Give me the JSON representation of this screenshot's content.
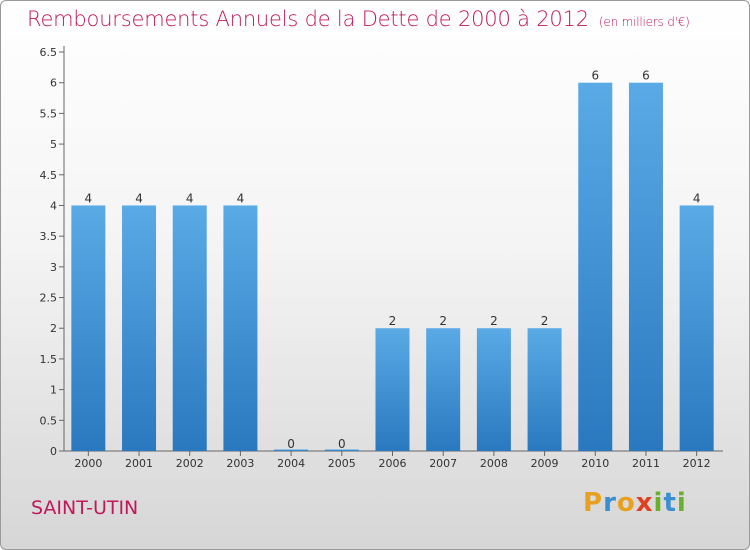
{
  "title": "Remboursements Annuels de la Dette de 2000 à 2012",
  "unit_note": "(en milliers d'€)",
  "town": "SAINT-UTIN",
  "logo": {
    "p": "P",
    "r": "r",
    "o": "o",
    "x": "x",
    "i1": "i",
    "t": "t",
    "i2": "i"
  },
  "colors": {
    "title": "#c2185b",
    "bar_top": "#5aaae6",
    "bar_bottom": "#2a78bf"
  },
  "chart_data": {
    "type": "bar",
    "categories": [
      "2000",
      "2001",
      "2002",
      "2003",
      "2004",
      "2005",
      "2006",
      "2007",
      "2008",
      "2009",
      "2010",
      "2011",
      "2012"
    ],
    "values": [
      4,
      4,
      4,
      4,
      0,
      0,
      2,
      2,
      2,
      2,
      6,
      6,
      4
    ],
    "data_labels": [
      "4",
      "4",
      "4",
      "4",
      "0",
      "0",
      "2",
      "2",
      "2",
      "2",
      "6",
      "6",
      "4"
    ],
    "ylim": [
      0,
      6.5
    ],
    "yticks": [
      "0",
      "0.5",
      "1",
      "1.5",
      "2",
      "2.5",
      "3",
      "3.5",
      "4",
      "4.5",
      "5",
      "5.5",
      "6",
      "6.5"
    ],
    "grid": false,
    "legend": "none"
  }
}
